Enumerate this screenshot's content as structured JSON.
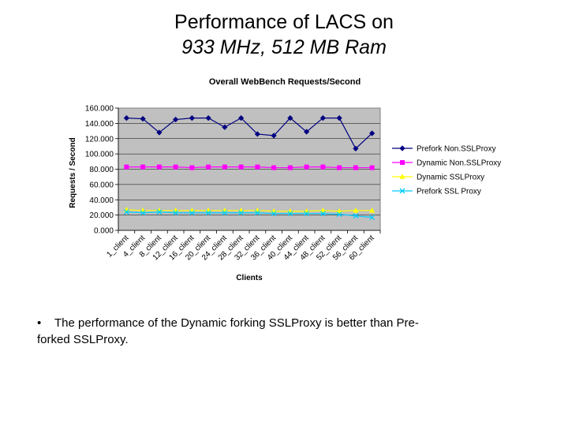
{
  "slide": {
    "title_line1": "Performance of LACS on",
    "title_line2": "933 MHz, 512 MB Ram",
    "bullet_marker": "•",
    "bullet_text": "The performance of the Dynamic forking SSLProxy is better than Pre-forked SSLProxy."
  },
  "chart_data": {
    "type": "line",
    "title": "Overall WebBench Requests/Second",
    "xlabel": "Clients",
    "ylabel": "Requests / Second",
    "ylim": [
      0,
      160
    ],
    "y_ticks": [
      "0.000",
      "20.000",
      "40.000",
      "60.000",
      "80.000",
      "100.000",
      "120.000",
      "140.000",
      "160.000"
    ],
    "y_tick_values": [
      0,
      20,
      40,
      60,
      80,
      100,
      120,
      140,
      160
    ],
    "categories": [
      "1_client",
      "4_client",
      "8_client",
      "12_client",
      "16_client",
      "20_client",
      "24_client",
      "28_client",
      "32_client",
      "36_client",
      "40_client",
      "44_client",
      "48_client",
      "52_client",
      "56_client",
      "60_client"
    ],
    "plot_background": "#c0c0c0",
    "legend_position": "right",
    "series": [
      {
        "name": "Prefork Non.SSLProxy",
        "color": "#000080",
        "marker": "diamond",
        "values": [
          147,
          146,
          128,
          145,
          147,
          147,
          135,
          147,
          126,
          124,
          147,
          129,
          147,
          147,
          107,
          127
        ]
      },
      {
        "name": "Dynamic Non.SSLProxy",
        "color": "#ff00ff",
        "marker": "square",
        "values": [
          83,
          83,
          83,
          83,
          82,
          83,
          83,
          83,
          83,
          82,
          82,
          83,
          83,
          82,
          82,
          82
        ]
      },
      {
        "name": "Dynamic SSLProxy",
        "color": "#ffff00",
        "marker": "triangle",
        "values": [
          27,
          26,
          26,
          26,
          26,
          26,
          26,
          26,
          26,
          25,
          25,
          25,
          26,
          25,
          26,
          26
        ]
      },
      {
        "name": "Prefork SSL Proxy",
        "color": "#00ccff",
        "marker": "x",
        "values": [
          24,
          23,
          24,
          23,
          23,
          23,
          23,
          23,
          23,
          22,
          22,
          22,
          22,
          21,
          19,
          17
        ]
      }
    ]
  }
}
